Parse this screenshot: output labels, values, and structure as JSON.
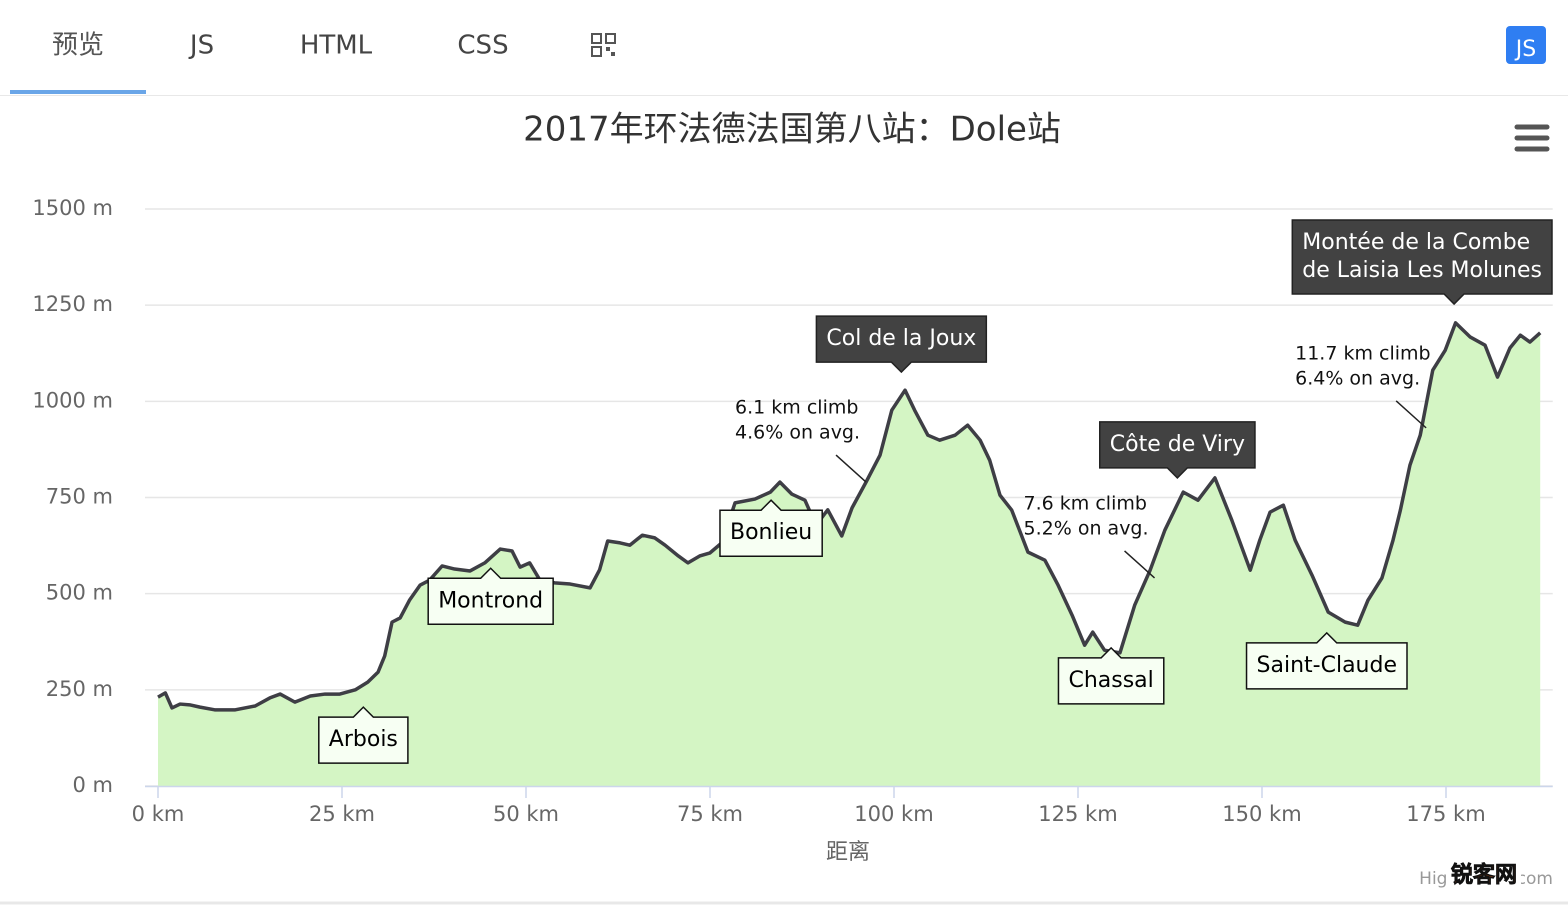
{
  "tabs": [
    "预览",
    "JS",
    "HTML",
    "CSS"
  ],
  "badge": "JS",
  "chart_data": {
    "type": "area",
    "title": "2017年环法德法国第八站：Dole站",
    "x_label": "距离",
    "credits": "Highcharts.com",
    "watermark": "锐客网",
    "color": "#3e3e45",
    "fill": "#d4f5c4",
    "grid": true,
    "xlim": [
      0,
      189.5
    ],
    "ylim": [
      0,
      1500
    ],
    "xticks": [
      {
        "value": 0,
        "label": "0 km"
      },
      {
        "value": 25,
        "label": "25 km"
      },
      {
        "value": 50,
        "label": "50 km"
      },
      {
        "value": 75,
        "label": "75 km"
      },
      {
        "value": 100,
        "label": "100 km"
      },
      {
        "value": 125,
        "label": "125 km"
      },
      {
        "value": 150,
        "label": "150 km"
      },
      {
        "value": 175,
        "label": "175 km"
      }
    ],
    "yticks": [
      {
        "value": 0,
        "label": "0 m"
      },
      {
        "value": 250,
        "label": "250 m"
      },
      {
        "value": 500,
        "label": "500 m"
      },
      {
        "value": 750,
        "label": "750 m"
      },
      {
        "value": 1000,
        "label": "1000 m"
      },
      {
        "value": 1250,
        "label": "1250 m"
      },
      {
        "value": 1500,
        "label": "1500 m"
      }
    ],
    "x": [
      0,
      1,
      1.9,
      3,
      4.3,
      5.7,
      7.7,
      10.5,
      13.2,
      15.2,
      16.6,
      18.6,
      20.7,
      22.7,
      24.7,
      26.8,
      28.5,
      29.9,
      30.8,
      31.8,
      32.9,
      34.2,
      35.6,
      36.9,
      38.6,
      40.3,
      42.4,
      44.4,
      46.5,
      48.1,
      49.2,
      50.5,
      51.9,
      53.9,
      56,
      58.7,
      60,
      61.1,
      62.8,
      64.1,
      65.8,
      67.5,
      68.9,
      70.7,
      72,
      73.6,
      75,
      76.6,
      78.4,
      81.1,
      83.2,
      84.5,
      86.1,
      87.9,
      89.4,
      91,
      92.9,
      94.3,
      96.2,
      98.1,
      99.7,
      101.5,
      102.8,
      104.6,
      106.2,
      108.3,
      110,
      111.7,
      113,
      114.4,
      116,
      118.2,
      120.5,
      122.3,
      124.2,
      125.9,
      127,
      128.6,
      130.7,
      132.7,
      134.8,
      136.8,
      139.3,
      141.3,
      143.6,
      145.9,
      148.4,
      149.7,
      151.1,
      152.9,
      154.5,
      156.8,
      159,
      161.3,
      163,
      164.4,
      166.3,
      167.8,
      168.8,
      170.1,
      171.5,
      173.2,
      174.9,
      176.3,
      178.3,
      180.3,
      182,
      183.7,
      185.1,
      186.4,
      187.8
    ],
    "values": [
      231,
      242,
      203,
      213,
      211,
      205,
      198,
      198,
      208,
      229,
      239,
      218,
      234,
      239,
      239,
      250,
      270,
      296,
      338,
      426,
      437,
      484,
      522,
      535,
      572,
      564,
      559,
      580,
      616,
      611,
      569,
      580,
      535,
      528,
      525,
      515,
      562,
      637,
      632,
      626,
      652,
      645,
      626,
      598,
      580,
      598,
      606,
      632,
      736,
      746,
      764,
      790,
      759,
      743,
      678,
      718,
      650,
      723,
      790,
      860,
      977,
      1029,
      977,
      912,
      899,
      912,
      938,
      899,
      847,
      756,
      717,
      608,
      587,
      522,
      444,
      366,
      400,
      353,
      346,
      470,
      561,
      665,
      764,
      743,
      801,
      691,
      561,
      639,
      712,
      730,
      639,
      548,
      452,
      426,
      418,
      483,
      541,
      639,
      717,
      834,
      912,
      1081,
      1133,
      1204,
      1167,
      1146,
      1063,
      1139,
      1172,
      1154,
      1178
    ],
    "annotations": [
      {
        "text": [
          "Arbois"
        ],
        "x": 27.9,
        "y": 205,
        "style": "light",
        "side": "below"
      },
      {
        "text": [
          "Montrond"
        ],
        "x": 45.2,
        "y": 566,
        "style": "light",
        "side": "below"
      },
      {
        "text": [
          "Bonlieu"
        ],
        "x": 83.3,
        "y": 743,
        "style": "light",
        "side": "below"
      },
      {
        "text": [
          "Col de la Joux"
        ],
        "x": 101,
        "y": 1076,
        "style": "dark",
        "side": "above"
      },
      {
        "text": [
          "Chassal"
        ],
        "x": 129.5,
        "y": 359,
        "style": "light",
        "side": "below"
      },
      {
        "text": [
          "Côte de Viry"
        ],
        "x": 138.5,
        "y": 801,
        "style": "dark",
        "side": "above"
      },
      {
        "text": [
          "Saint-Claude"
        ],
        "x": 158.8,
        "y": 398,
        "style": "light",
        "side": "below"
      },
      {
        "text": [
          "Montée de la Combe",
          "de Laisia Les Molunes"
        ],
        "x": 176.1,
        "y": 1253,
        "style": "dark",
        "side": "above"
      }
    ],
    "climbs": [
      {
        "text": [
          "6.1 km climb",
          "4.6% on avg."
        ],
        "x": 96.2,
        "y": 790
      },
      {
        "text": [
          "7.6 km climb",
          "5.2% on avg."
        ],
        "x": 135.4,
        "y": 541
      },
      {
        "text": [
          "11.7 km climb",
          "6.4% on avg."
        ],
        "x": 172.3,
        "y": 931
      }
    ]
  }
}
